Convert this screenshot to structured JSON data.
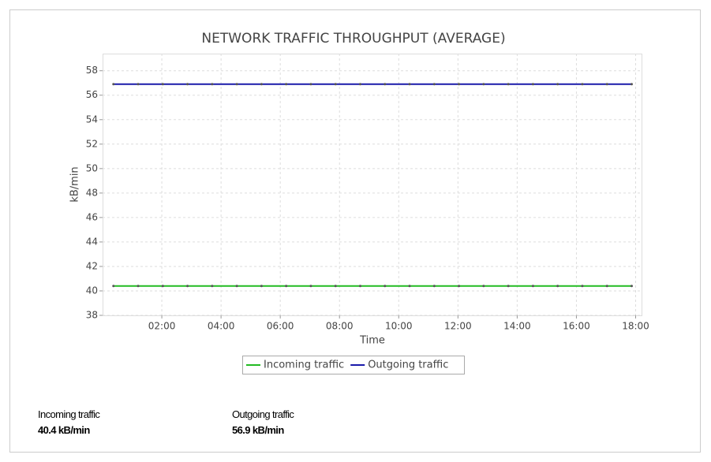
{
  "chart_data": {
    "type": "line",
    "title": "NETWORK TRAFFIC THROUGHPUT (AVERAGE)",
    "x_label": "Time",
    "y_label": "kB/min",
    "x": [
      "00:22",
      "01:12",
      "02:02",
      "02:52",
      "03:42",
      "04:32",
      "05:22",
      "06:12",
      "07:02",
      "07:52",
      "08:42",
      "09:32",
      "10:22",
      "11:12",
      "12:02",
      "12:52",
      "13:42",
      "14:32",
      "15:22",
      "16:12",
      "17:02",
      "17:52"
    ],
    "series": [
      {
        "name": "Incoming traffic",
        "color": "#22bb22",
        "values": [
          40.4,
          40.4,
          40.4,
          40.4,
          40.4,
          40.4,
          40.4,
          40.4,
          40.4,
          40.4,
          40.4,
          40.4,
          40.4,
          40.4,
          40.4,
          40.4,
          40.4,
          40.4,
          40.4,
          40.4,
          40.4,
          40.4
        ]
      },
      {
        "name": "Outgoing traffic",
        "color": "#1a1aaa",
        "values": [
          56.9,
          56.9,
          56.9,
          56.9,
          56.9,
          56.9,
          56.9,
          56.9,
          56.9,
          56.9,
          56.9,
          56.9,
          56.9,
          56.9,
          56.9,
          56.9,
          56.9,
          56.9,
          56.9,
          56.9,
          56.9,
          56.9
        ]
      }
    ],
    "xlim": [
      "00:00",
      "18:12"
    ],
    "xticks": [
      "02:00",
      "04:00",
      "06:00",
      "08:00",
      "10:00",
      "12:00",
      "14:00",
      "16:00",
      "18:00"
    ],
    "ylim": [
      38,
      59.4
    ],
    "yticks": [
      38,
      40,
      42,
      44,
      46,
      48,
      50,
      52,
      54,
      56,
      58
    ],
    "grid": true,
    "legend": "bottom"
  },
  "summary": {
    "items": [
      {
        "value": "40.4 kB/min"
      },
      {
        "value": "56.9 kB/min"
      }
    ]
  }
}
